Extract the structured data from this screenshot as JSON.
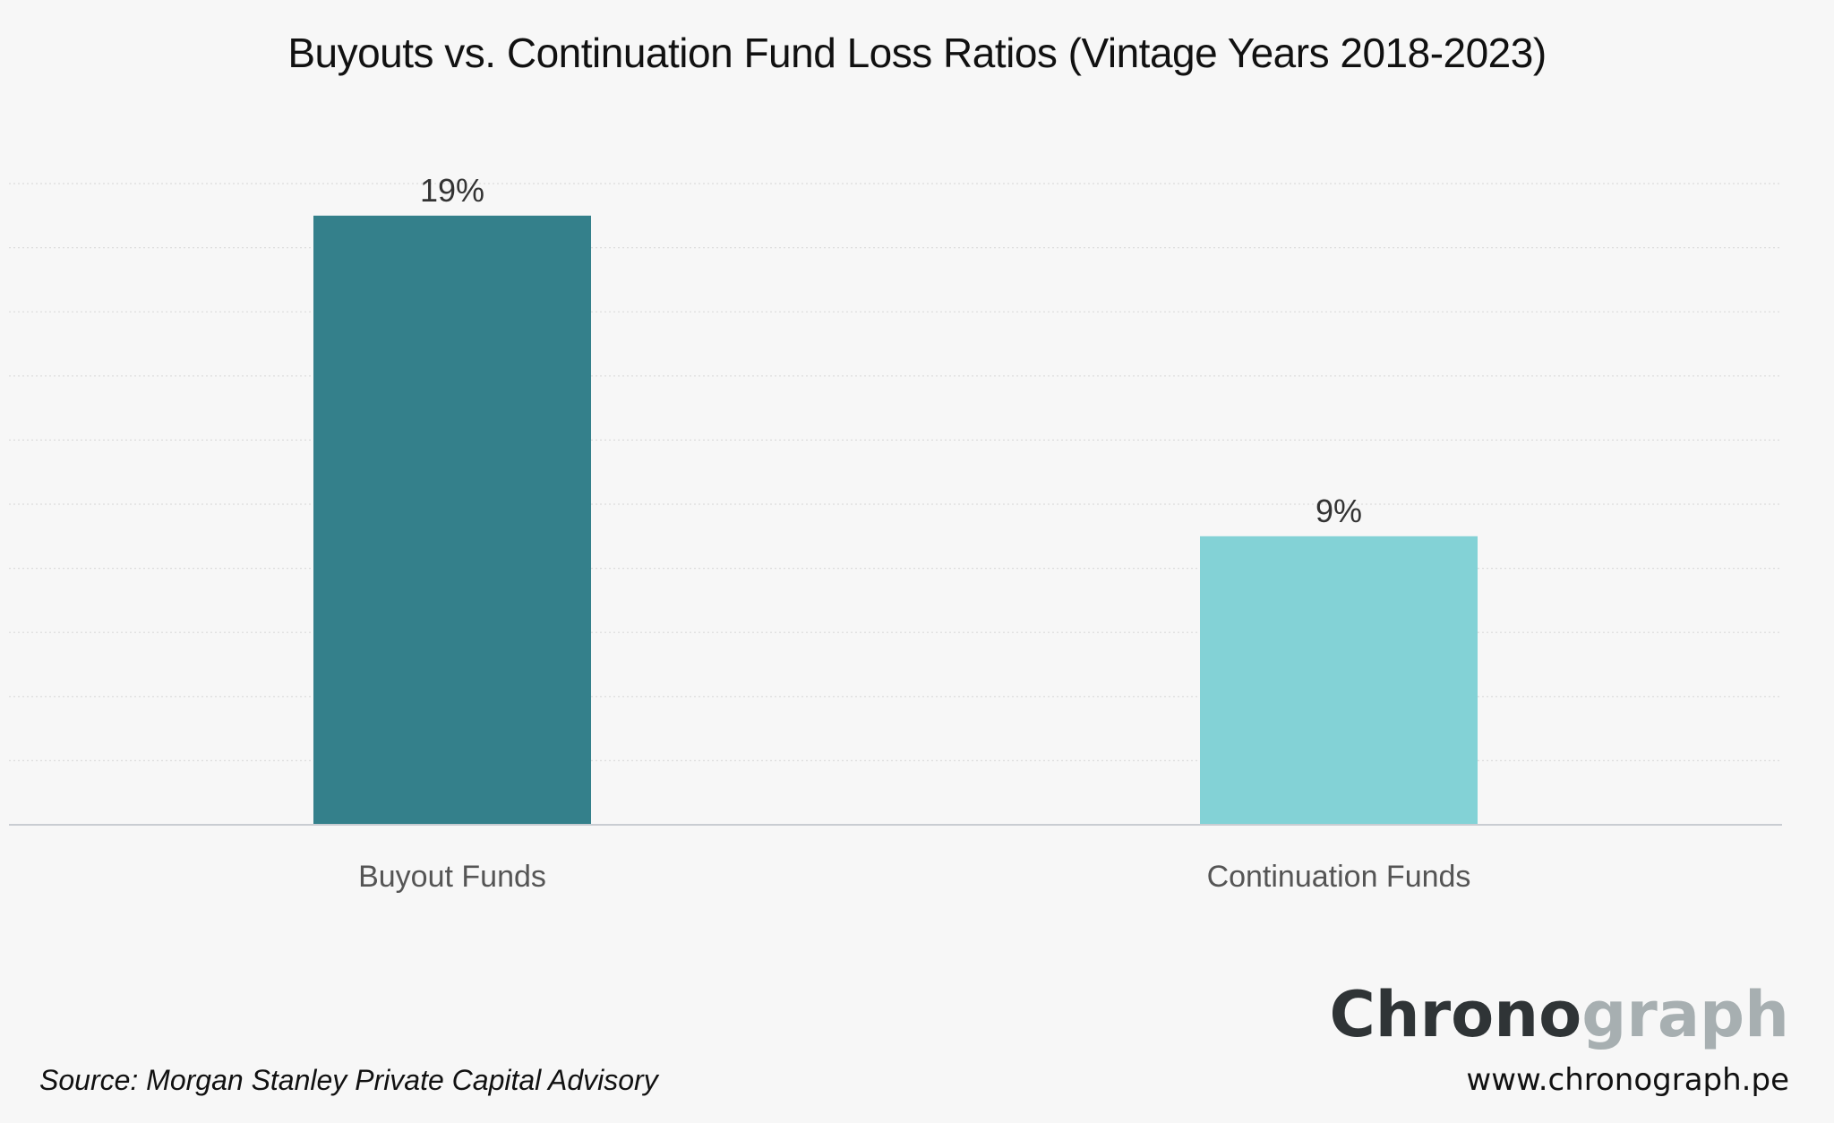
{
  "chart_data": {
    "type": "bar",
    "title": "Buyouts vs. Continuation Fund Loss Ratios (Vintage Years 2018-2023)",
    "categories": [
      "Buyout Funds",
      "Continuation Funds"
    ],
    "values": [
      19,
      9
    ],
    "data_labels": [
      "19%",
      "9%"
    ],
    "bar_colors": [
      "#34808b",
      "#83d2d6"
    ],
    "ylim": [
      0,
      20
    ],
    "grid": true,
    "xlabel": "",
    "ylabel": ""
  },
  "footer": {
    "source": "Source: Morgan Stanley Private Capital Advisory",
    "logo_part1": "Chrono",
    "logo_part2": "graph",
    "url": "www.chronograph.pe"
  }
}
